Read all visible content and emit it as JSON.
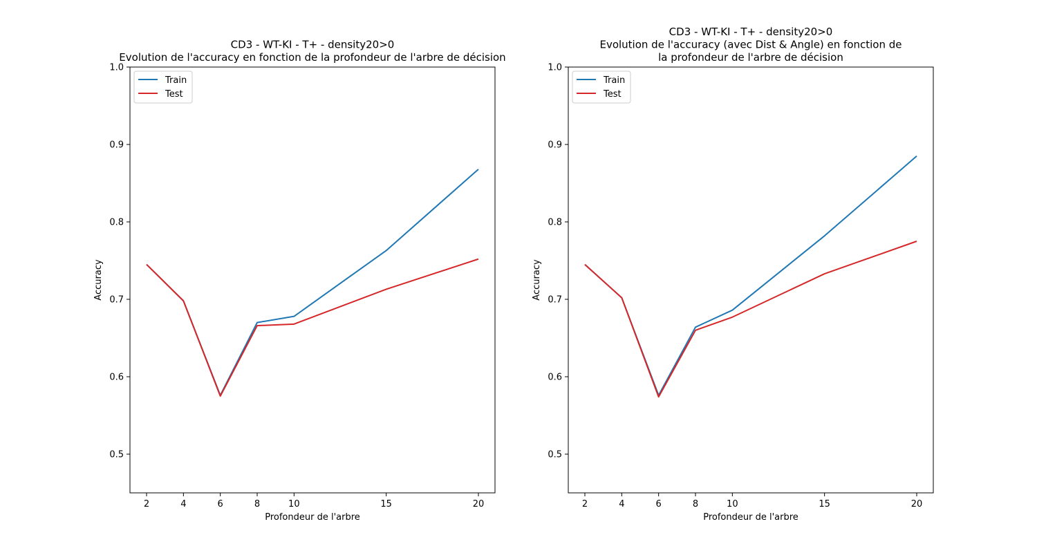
{
  "colors": {
    "train": "#1f77b4",
    "test": "#d62728",
    "axes": "#000000",
    "background": "#ffffff"
  },
  "chart_data": [
    {
      "type": "line",
      "title_lines": [
        "CD3 - WT-KI - T+ - density20>0",
        "Evolution de l'accuracy en fonction de la profondeur de l'arbre de décision"
      ],
      "xlabel": "Profondeur de l'arbre",
      "ylabel": "Accuracy",
      "x": [
        2,
        4,
        6,
        8,
        10,
        15,
        20
      ],
      "xticks": [
        "2",
        "4",
        "6",
        "8",
        "10",
        "15",
        "20"
      ],
      "yticks": [
        "0.5",
        "0.6",
        "0.7",
        "0.8",
        "0.9",
        "1.0"
      ],
      "xlim": [
        1.1,
        20.9
      ],
      "ylim": [
        0.45,
        1.0
      ],
      "grid": false,
      "legend": "upper left",
      "series": [
        {
          "name": "Train",
          "color_key": "train",
          "values": [
            0.745,
            0.698,
            0.576,
            0.67,
            0.678,
            0.763,
            0.868
          ]
        },
        {
          "name": "Test",
          "color_key": "test",
          "values": [
            0.745,
            0.698,
            0.575,
            0.666,
            0.668,
            0.713,
            0.752
          ]
        }
      ]
    },
    {
      "type": "line",
      "title_lines": [
        "CD3 - WT-KI - T+ - density20>0",
        "Evolution de l'accuracy (avec Dist & Angle) en fonction de",
        "la profondeur de l'arbre de décision"
      ],
      "xlabel": "Profondeur de l'arbre",
      "ylabel": "Accuracy",
      "x": [
        2,
        4,
        6,
        8,
        10,
        15,
        20
      ],
      "xticks": [
        "2",
        "4",
        "6",
        "8",
        "10",
        "15",
        "20"
      ],
      "yticks": [
        "0.5",
        "0.6",
        "0.7",
        "0.8",
        "0.9",
        "1.0"
      ],
      "xlim": [
        1.1,
        20.9
      ],
      "ylim": [
        0.45,
        1.0
      ],
      "grid": false,
      "legend": "upper left",
      "series": [
        {
          "name": "Train",
          "color_key": "train",
          "values": [
            0.745,
            0.702,
            0.576,
            0.664,
            0.686,
            0.782,
            0.885
          ]
        },
        {
          "name": "Test",
          "color_key": "test",
          "values": [
            0.745,
            0.702,
            0.574,
            0.66,
            0.677,
            0.733,
            0.775
          ]
        }
      ]
    }
  ]
}
